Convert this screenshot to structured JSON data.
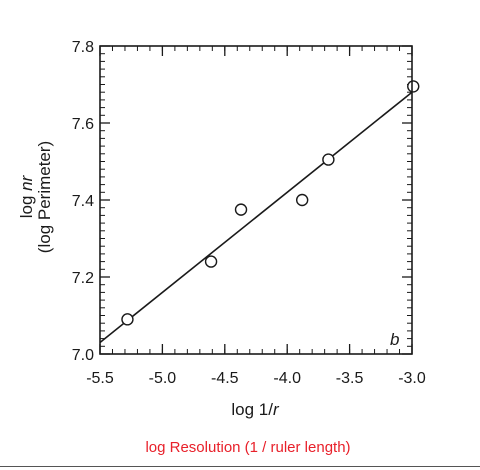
{
  "chart_data": {
    "type": "scatter",
    "title": "",
    "xlabel_prefix": "log 1/",
    "xlabel_var": "r",
    "ylabel_prefix": "log ",
    "ylabel_var": "nr",
    "ylabel_line2": "(log Perimeter)",
    "xlim": [
      -5.5,
      -3.0
    ],
    "ylim": [
      7.0,
      7.8
    ],
    "x_ticks": [
      -5.5,
      -5.0,
      -4.5,
      -4.0,
      -3.5,
      -3.0
    ],
    "x_tick_labels": [
      "-5.5",
      "-5.0",
      "-4.5",
      "-4.0",
      "-3.5",
      "-3.0"
    ],
    "y_ticks": [
      7.0,
      7.2,
      7.4,
      7.6,
      7.8
    ],
    "y_tick_labels": [
      "7.0",
      "7.2",
      "7.4",
      "7.6",
      "7.8"
    ],
    "x_minor_step": 0.1,
    "y_minor_step": 0.02,
    "points": {
      "x": [
        -5.28,
        -4.61,
        -4.37,
        -3.88,
        -3.67,
        -2.99
      ],
      "y": [
        7.09,
        7.24,
        7.375,
        7.4,
        7.505,
        7.695
      ]
    },
    "fit_line": {
      "x": [
        -5.5,
        -3.0
      ],
      "y": [
        7.03,
        7.68
      ]
    },
    "panel_label": "b",
    "grid": false
  },
  "caption": "log Resolution (1 / ruler length)",
  "colors": {
    "ink": "#1a1a1a",
    "caption": "#e8202a",
    "marker_fill": "#ffffff"
  }
}
